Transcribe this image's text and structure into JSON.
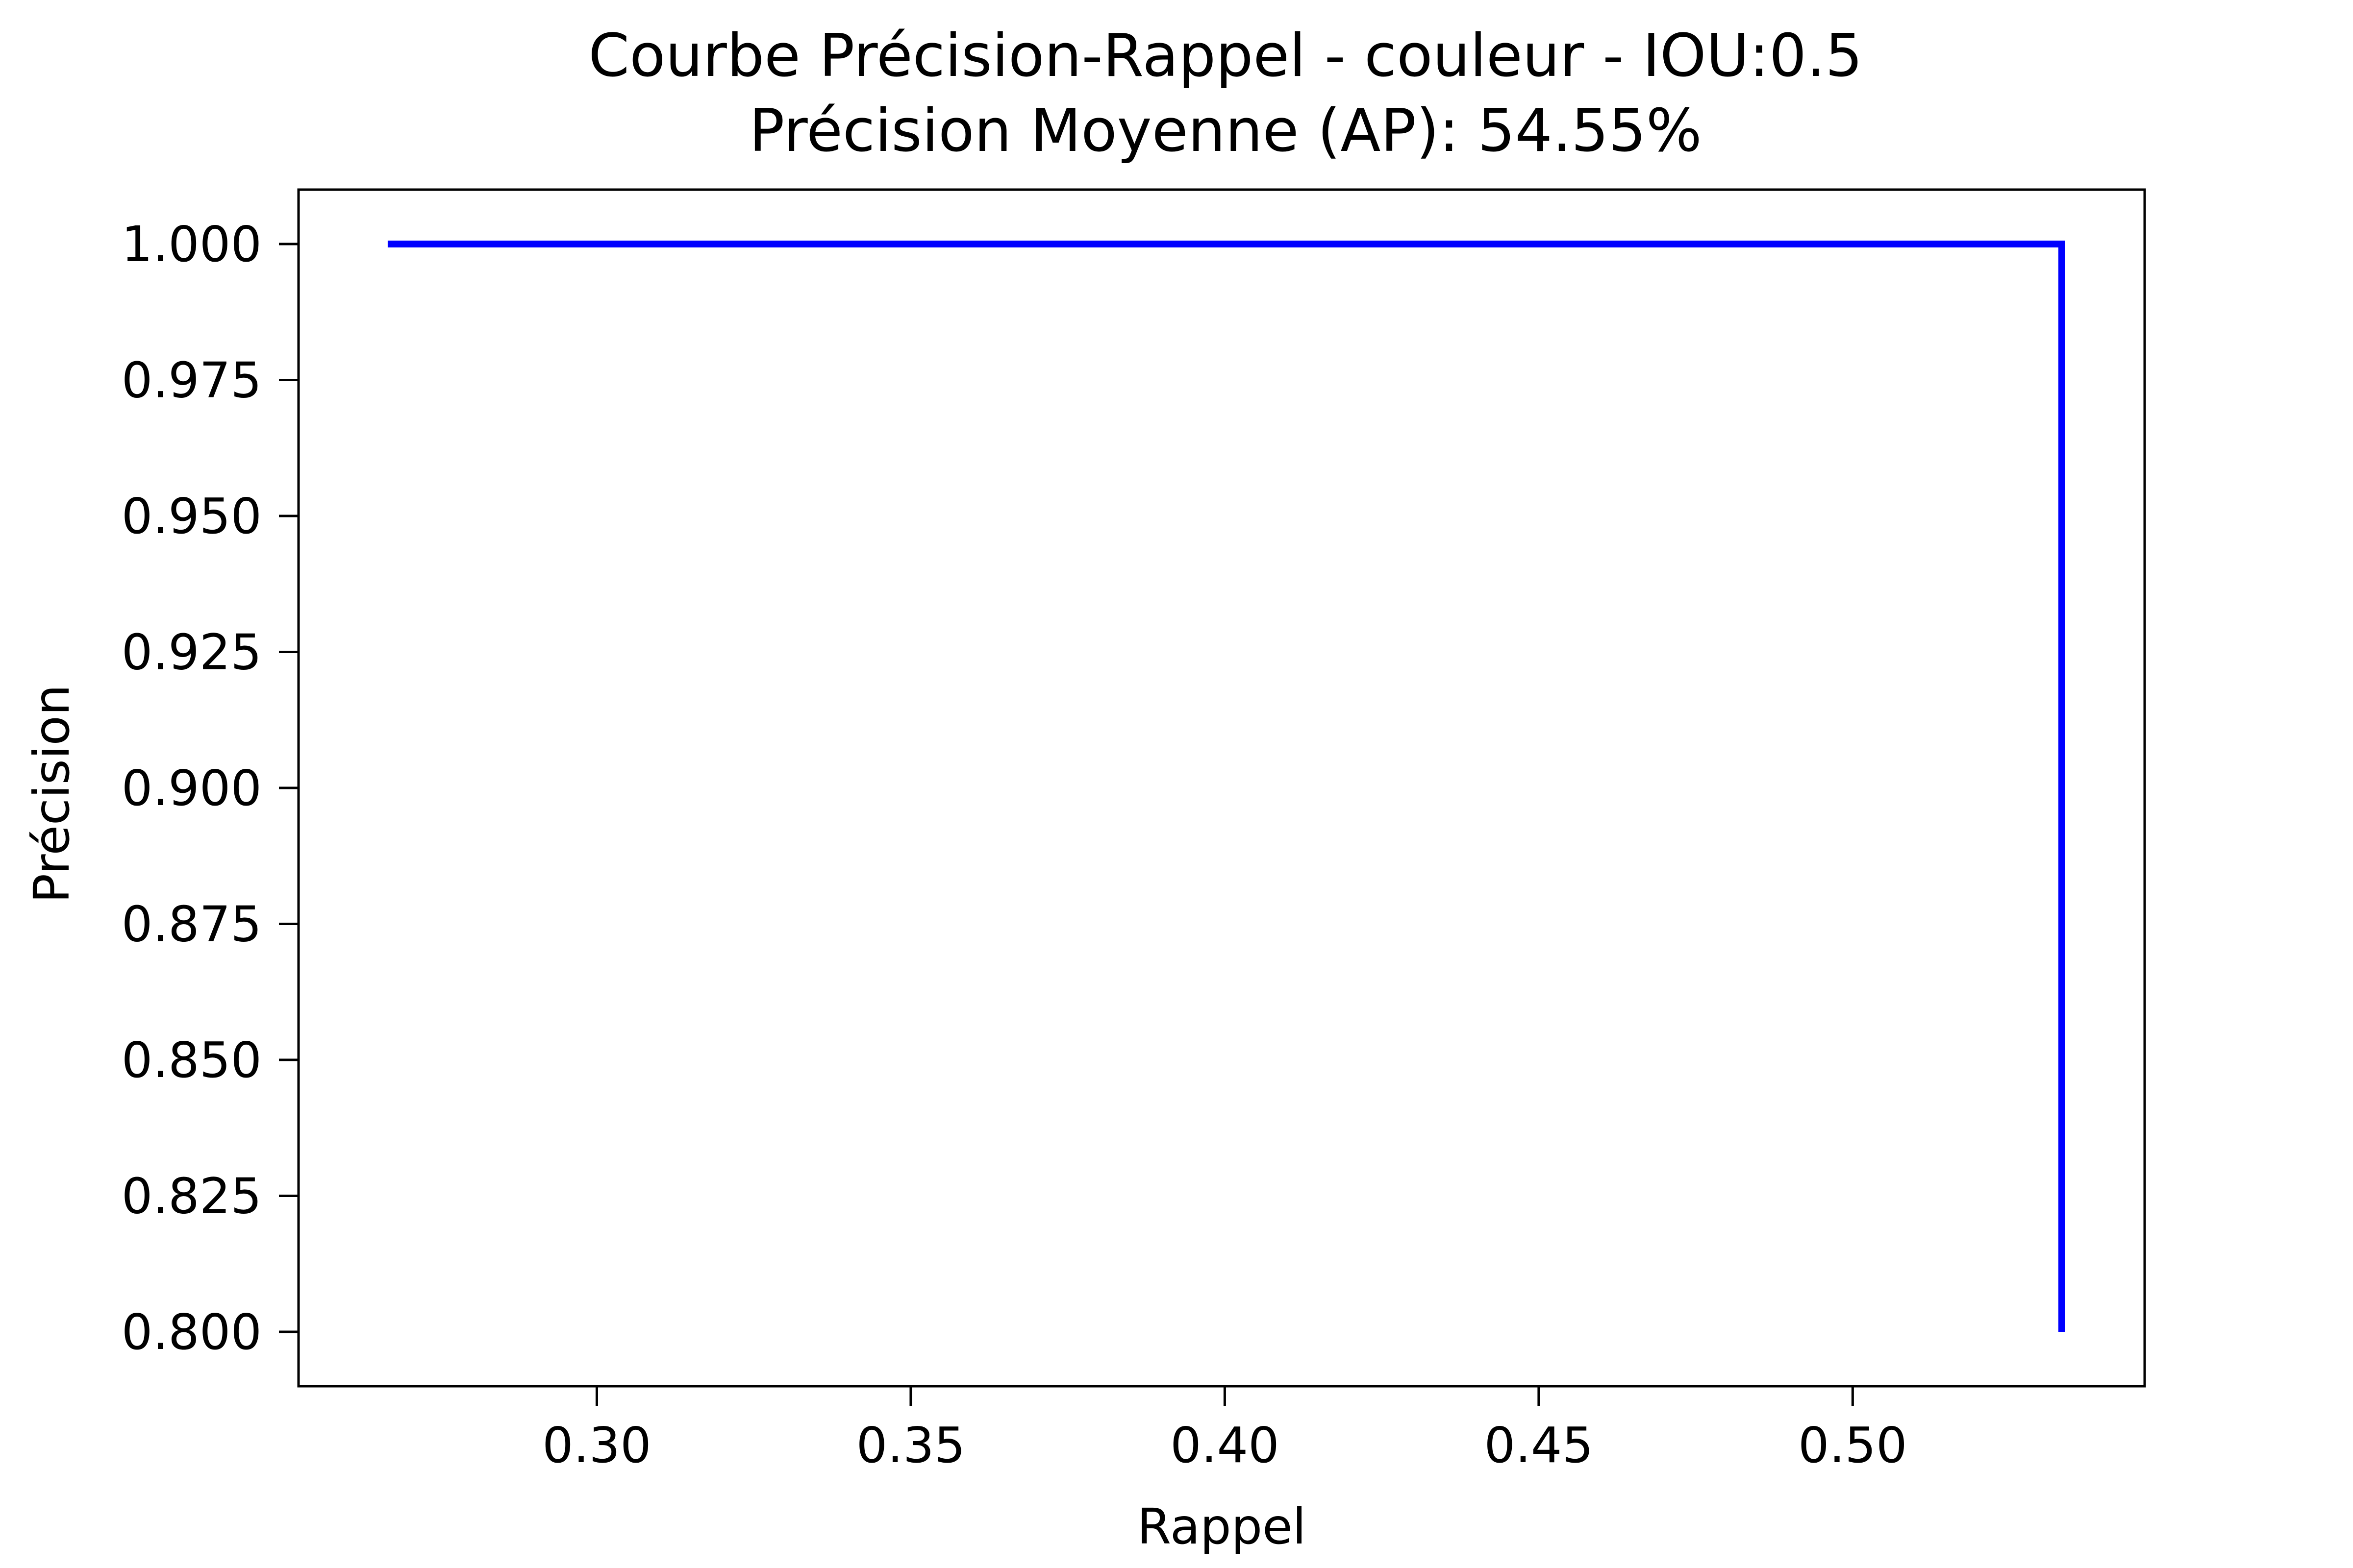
{
  "chart_data": {
    "type": "line",
    "title": "Courbe Précision-Rappel - couleur - IOU:0.5",
    "subtitle": "Précision Moyenne (AP): 54.55%",
    "xlabel": "Rappel",
    "ylabel": "Précision",
    "xlim": [
      0.2525,
      0.5465
    ],
    "ylim": [
      0.79,
      1.01
    ],
    "grid": false,
    "legend": "none",
    "x_ticks": [
      0.3,
      0.35,
      0.4,
      0.45,
      0.5
    ],
    "x_tick_labels": [
      "0.30",
      "0.35",
      "0.40",
      "0.45",
      "0.50"
    ],
    "y_ticks": [
      1.0,
      0.975,
      0.95,
      0.925,
      0.9,
      0.875,
      0.85,
      0.825,
      0.8
    ],
    "y_tick_labels": [
      "1.000",
      "0.975",
      "0.950",
      "0.925",
      "0.900",
      "0.875",
      "0.850",
      "0.825",
      "0.800"
    ],
    "series": [
      {
        "color": "#0000ff",
        "points": [
          {
            "x": 0.2667,
            "y": 1.0
          },
          {
            "x": 0.5333,
            "y": 1.0
          },
          {
            "x": 0.5333,
            "y": 0.8
          }
        ]
      }
    ]
  }
}
